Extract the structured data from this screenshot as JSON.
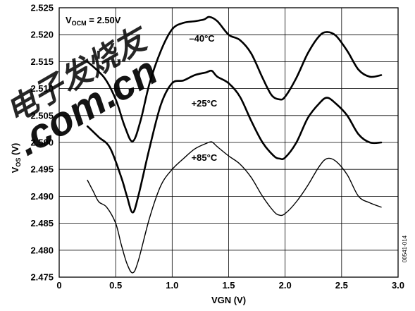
{
  "chart_data": {
    "type": "line",
    "xlabel": "VGN (V)",
    "ylabel": "V_OS (V)",
    "ylabel_main": "V",
    "ylabel_sub": "OS",
    "ylabel_unit": " (V)",
    "xlim": [
      0,
      3.0
    ],
    "ylim": [
      2.475,
      2.525
    ],
    "x_ticks": [
      "0",
      "0.5",
      "1.0",
      "1.5",
      "2.0",
      "2.5",
      "3.0"
    ],
    "y_ticks": [
      "2.475",
      "2.480",
      "2.485",
      "2.490",
      "2.495",
      "2.500",
      "2.505",
      "2.510",
      "2.515",
      "2.520",
      "2.525"
    ],
    "grid": true,
    "annotation_vocm": {
      "main": "V",
      "sub": "OCM",
      "rest": " = 2.50V"
    },
    "figure_id": "00541-014",
    "watermark": {
      "cn_text": "电子发烧友",
      "url_text": ".com.cn",
      "cn_color": "#c8c8c8",
      "url_color": "#e4331f"
    },
    "series": [
      {
        "name": "–40°C",
        "line_width": 2.6,
        "x": [
          0.25,
          0.4,
          0.5,
          0.58,
          0.65,
          0.72,
          0.8,
          0.9,
          1.0,
          1.1,
          1.2,
          1.28,
          1.33,
          1.4,
          1.5,
          1.6,
          1.7,
          1.8,
          1.88,
          1.95,
          2.0,
          2.1,
          2.2,
          2.3,
          2.37,
          2.45,
          2.55,
          2.65,
          2.75,
          2.85
        ],
        "y": [
          2.515,
          2.512,
          2.508,
          2.503,
          2.5002,
          2.504,
          2.511,
          2.517,
          2.521,
          2.5222,
          2.5225,
          2.5228,
          2.5233,
          2.5225,
          2.52,
          2.519,
          2.5165,
          2.512,
          2.5088,
          2.508,
          2.5085,
          2.512,
          2.5165,
          2.5197,
          2.5205,
          2.5198,
          2.517,
          2.5135,
          2.5122,
          2.5125
        ]
      },
      {
        "name": "+25°C",
        "line_width": 2.6,
        "x": [
          0.25,
          0.35,
          0.45,
          0.55,
          0.6,
          0.65,
          0.7,
          0.8,
          0.9,
          1.0,
          1.1,
          1.2,
          1.3,
          1.35,
          1.4,
          1.5,
          1.6,
          1.7,
          1.8,
          1.9,
          1.95,
          2.0,
          2.1,
          2.2,
          2.3,
          2.37,
          2.45,
          2.55,
          2.65,
          2.75,
          2.85
        ],
        "y": [
          2.503,
          2.501,
          2.499,
          2.4935,
          2.49,
          2.487,
          2.49,
          2.499,
          2.507,
          2.511,
          2.5115,
          2.5125,
          2.513,
          2.5133,
          2.5122,
          2.511,
          2.5085,
          2.504,
          2.5,
          2.4975,
          2.497,
          2.4972,
          2.5,
          2.5045,
          2.5072,
          2.5083,
          2.5072,
          2.505,
          2.5015,
          2.5,
          2.5
        ]
      },
      {
        "name": "+85°C",
        "line_width": 1.4,
        "x": [
          0.25,
          0.3,
          0.35,
          0.42,
          0.5,
          0.55,
          0.6,
          0.65,
          0.7,
          0.8,
          0.9,
          1.0,
          1.1,
          1.2,
          1.3,
          1.35,
          1.4,
          1.5,
          1.6,
          1.7,
          1.8,
          1.9,
          1.95,
          2.0,
          2.1,
          2.2,
          2.3,
          2.37,
          2.45,
          2.55,
          2.65,
          2.75,
          2.85
        ],
        "y": [
          2.493,
          2.491,
          2.489,
          2.488,
          2.485,
          2.481,
          2.4775,
          2.4758,
          2.478,
          2.486,
          2.492,
          2.495,
          2.497,
          2.4988,
          2.4998,
          2.5001,
          2.4992,
          2.4975,
          2.496,
          2.4935,
          2.49,
          2.4872,
          2.4865,
          2.4868,
          2.489,
          2.492,
          2.4955,
          2.497,
          2.4965,
          2.494,
          2.49,
          2.4888,
          2.488
        ]
      }
    ],
    "series_label_positions": [
      {
        "x": 1.15,
        "y": 2.5187
      },
      {
        "x": 1.17,
        "y": 2.5067
      },
      {
        "x": 1.17,
        "y": 2.4966
      }
    ]
  }
}
